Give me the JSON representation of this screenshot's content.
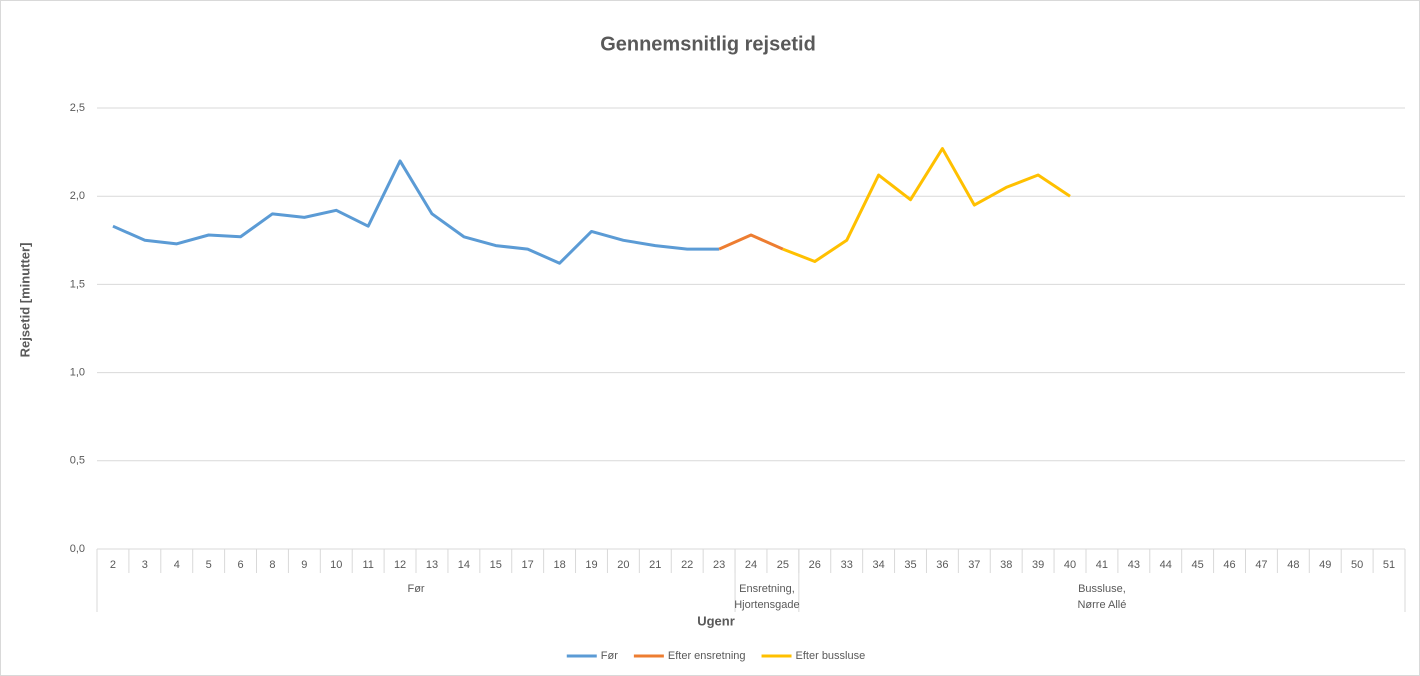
{
  "chart_data": {
    "type": "line",
    "title": "Gennemsnitlig rejsetid",
    "ylabel": "Rejsetid [minutter]",
    "xlabel": "Ugenr",
    "groups": [
      {
        "label": [
          "Før"
        ],
        "categories": [
          "2",
          "3",
          "4",
          "5",
          "6",
          "8",
          "9",
          "10",
          "11",
          "12",
          "13",
          "14",
          "15",
          "17",
          "18",
          "19",
          "20",
          "21",
          "22",
          "23"
        ]
      },
      {
        "label": [
          "Ensretning,",
          "Hjortensgade"
        ],
        "categories": [
          "24",
          "25"
        ]
      },
      {
        "label": [
          "Bussluse,",
          "Nørre Allé"
        ],
        "categories": [
          "26",
          "33",
          "34",
          "35",
          "36",
          "37",
          "38",
          "39",
          "40",
          "41",
          "43",
          "44",
          "45",
          "46",
          "47",
          "48",
          "49",
          "50",
          "51"
        ]
      }
    ],
    "ylim": [
      0,
      2.5
    ],
    "yticks": [
      {
        "value": 0,
        "label": "0,0"
      },
      {
        "value": 0.5,
        "label": "0,5"
      },
      {
        "value": 1,
        "label": "1,0"
      },
      {
        "value": 1.5,
        "label": "1,5"
      },
      {
        "value": 2,
        "label": "2,0"
      },
      {
        "value": 2.5,
        "label": "2,5"
      }
    ],
    "grid": true,
    "legend": "bottom",
    "series": [
      {
        "name": "Før",
        "color": "#5b9bd5",
        "values": [
          1.83,
          1.75,
          1.73,
          1.78,
          1.77,
          1.9,
          1.88,
          1.92,
          1.83,
          2.2,
          1.9,
          1.77,
          1.72,
          1.7,
          1.62,
          1.8,
          1.75,
          1.72,
          1.7,
          1.7,
          null,
          null,
          null,
          null,
          null,
          null,
          null,
          null,
          null,
          null,
          null,
          null,
          null,
          null,
          null,
          null,
          null,
          null,
          null,
          null,
          null
        ]
      },
      {
        "name": "Efter ensretning",
        "color": "#ed7d31",
        "values": [
          null,
          null,
          null,
          null,
          null,
          null,
          null,
          null,
          null,
          null,
          null,
          null,
          null,
          null,
          null,
          null,
          null,
          null,
          null,
          1.7,
          1.78,
          1.7,
          null,
          null,
          null,
          null,
          null,
          null,
          null,
          null,
          null,
          null,
          null,
          null,
          null,
          null,
          null,
          null,
          null,
          null,
          null
        ]
      },
      {
        "name": "Efter bussluse",
        "color": "#ffc000",
        "values": [
          null,
          null,
          null,
          null,
          null,
          null,
          null,
          null,
          null,
          null,
          null,
          null,
          null,
          null,
          null,
          null,
          null,
          null,
          null,
          null,
          null,
          1.7,
          1.63,
          1.75,
          2.12,
          1.98,
          2.27,
          1.95,
          2.05,
          2.12,
          2.0,
          null,
          null,
          null,
          null,
          null,
          null,
          null,
          null,
          null,
          null
        ]
      }
    ]
  }
}
